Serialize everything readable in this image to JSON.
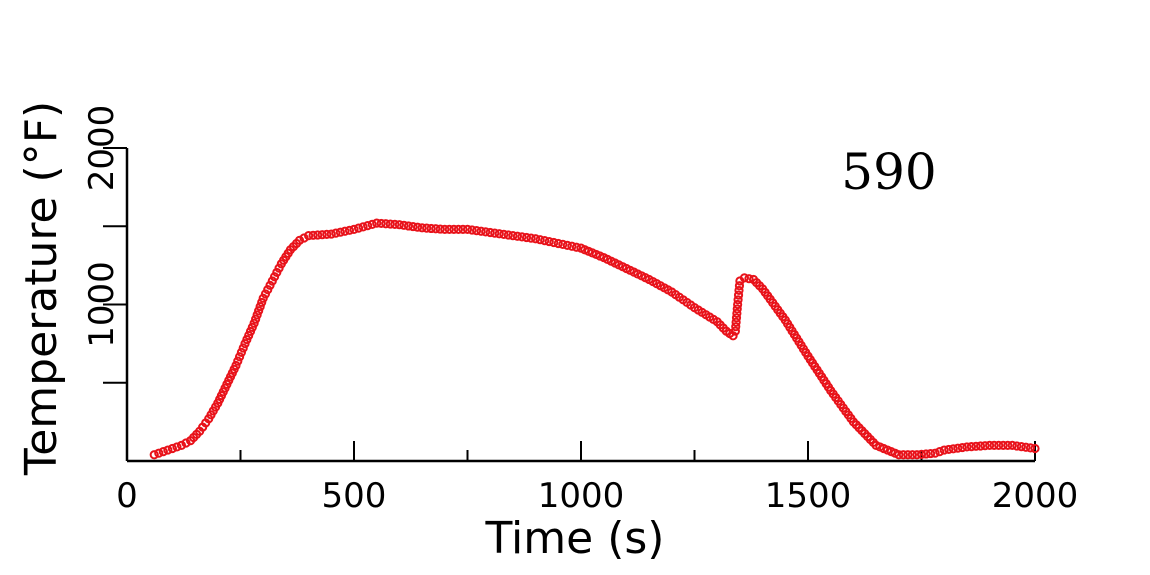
{
  "chart_data": {
    "type": "scatter",
    "title": "",
    "xlabel": "Time (s)",
    "ylabel": "Temperature (°F)",
    "annotation": "590",
    "xlim": [
      0,
      2000
    ],
    "ylim": [
      0,
      2000
    ],
    "x_tick_labels": [
      "0",
      "500",
      "1000",
      "1500",
      "2000"
    ],
    "y_tick_labels": [
      "1000",
      "2000"
    ],
    "grid": false,
    "legend": "none",
    "marker": "open-circle",
    "marker_color": "#e8121a",
    "series": [
      {
        "x": [
          60,
          80,
          100,
          120,
          140,
          160,
          180,
          200,
          220,
          240,
          260,
          280,
          300,
          320,
          340,
          360,
          380,
          400,
          450,
          500,
          550,
          600,
          650,
          700,
          750,
          800,
          850,
          900,
          950,
          1000,
          1050,
          1100,
          1150,
          1200,
          1250,
          1300,
          1320,
          1335,
          1340,
          1345,
          1350,
          1360,
          1380,
          1400,
          1450,
          1500,
          1550,
          1600,
          1650,
          1700,
          1740,
          1780,
          1800,
          1850,
          1900,
          1950,
          2000
        ],
        "y": [
          40,
          60,
          80,
          100,
          130,
          190,
          270,
          370,
          490,
          610,
          750,
          880,
          1040,
          1150,
          1260,
          1350,
          1410,
          1440,
          1450,
          1480,
          1520,
          1510,
          1490,
          1480,
          1480,
          1460,
          1440,
          1420,
          1390,
          1360,
          1300,
          1230,
          1160,
          1080,
          980,
          890,
          830,
          800,
          830,
          1000,
          1150,
          1170,
          1160,
          1100,
          900,
          670,
          450,
          250,
          100,
          40,
          40,
          50,
          70,
          90,
          100,
          100,
          80
        ]
      }
    ]
  }
}
